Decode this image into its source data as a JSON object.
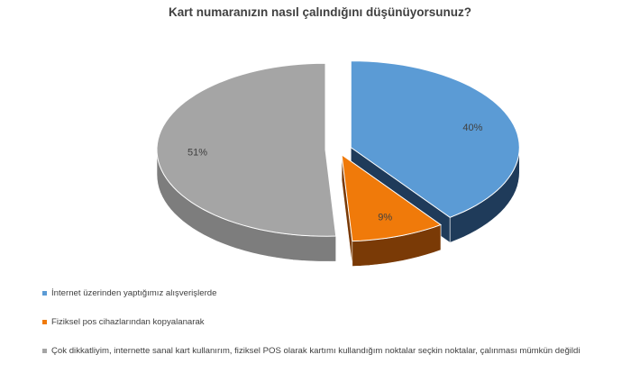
{
  "chart_data": {
    "type": "pie",
    "title": "Kart numaranızın nasıl çalındığını düşünüyorsunuz?",
    "three_d": true,
    "exploded": true,
    "legend_position": "bottom",
    "series": [
      {
        "name": "",
        "values": [
          40,
          9,
          51
        ]
      }
    ],
    "slices": [
      {
        "label": "İnternet üzerinden yaptığımız alışverişlerde",
        "value": 40,
        "data_label": "40%",
        "color": "#5b9bd5",
        "side_color": "#1f3b5a"
      },
      {
        "label": "Fiziksel pos cihazlarından kopyalanarak",
        "value": 9,
        "data_label": "9%",
        "color": "#f07a0a",
        "side_color": "#7a3a06"
      },
      {
        "label": "Çok dikkatliyim, internette sanal kart kullanırım, fiziksel POS olarak kartımı kullandığım noktalar seçkin noktalar, çalınması mümkün değildi",
        "value": 51,
        "data_label": "51%",
        "color": "#a5a5a5",
        "side_color": "#7d7d7d"
      }
    ]
  }
}
